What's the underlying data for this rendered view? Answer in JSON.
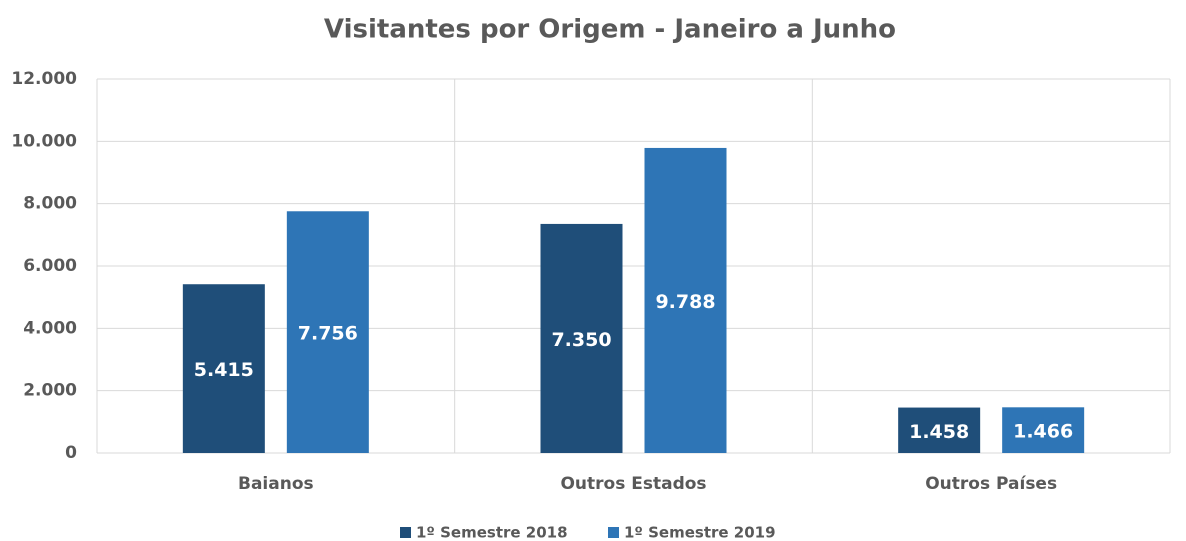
{
  "chart_data": {
    "type": "bar",
    "title": "Visitantes por Origem - Janeiro a Junho",
    "categories": [
      "Baianos",
      "Outros Estados",
      "Outros Países"
    ],
    "series": [
      {
        "name": "1º Semestre 2018",
        "color": "#1f4e79",
        "values": [
          5415,
          7350,
          1458
        ],
        "value_labels": [
          "5.415",
          "7.350",
          "1.458"
        ]
      },
      {
        "name": "1º Semestre 2019",
        "color": "#2e75b6",
        "values": [
          7756,
          9788,
          1466
        ],
        "value_labels": [
          "7.756",
          "9.788",
          "1.466"
        ]
      }
    ],
    "ylim": [
      0,
      12000
    ],
    "yticks": [
      0,
      {
        "value": 2000,
        "label": "2.000"
      },
      {
        "value": 4000,
        "label": "4.000"
      },
      {
        "value": 6000,
        "label": "6.000"
      },
      {
        "value": 8000,
        "label": "8.000"
      },
      {
        "value": 10000,
        "label": "10.000"
      },
      {
        "value": 12000,
        "label": "12.000"
      }
    ],
    "grid": true,
    "legend": "bottom"
  }
}
